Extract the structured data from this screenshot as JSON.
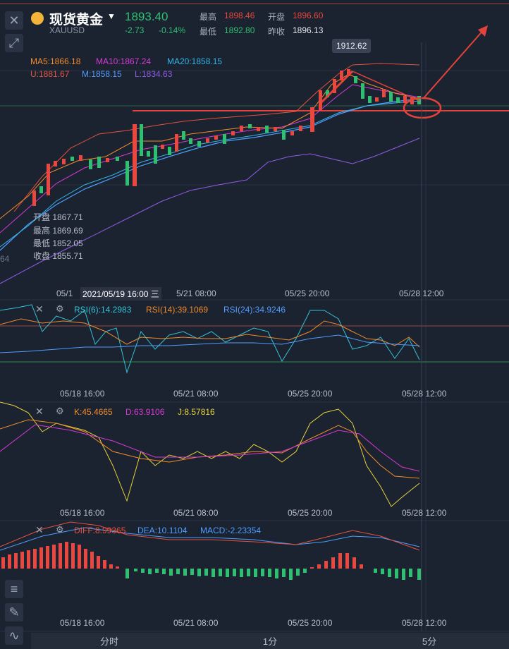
{
  "header": {
    "title": "现货黄金",
    "symbol": "XAUUSD",
    "price": "1893.40",
    "change": "-2.73",
    "change_pct": "-0.14%",
    "high_label": "最高",
    "high": "1898.46",
    "open_label": "开盘",
    "open": "1896.60",
    "low_label": "最低",
    "low": "1892.80",
    "prev_label": "昨收",
    "prev": "1896.13"
  },
  "main_chart": {
    "ma5": "MA5:1866.18",
    "ma10": "MA10:1867.24",
    "ma20": "MA20:1858.15",
    "boll_u": "U:1881.67",
    "boll_m": "M:1858.15",
    "boll_l": "L:1834.63",
    "tooltip_high": "1912.62",
    "cursor_time": "2021/05/19 16:00 三",
    "ohlc": {
      "open": "开盘 1867.71",
      "high": "最高 1869.69",
      "low": "最低 1852.05",
      "close": "收盘 1855.71"
    },
    "side_label": "64",
    "time_labels": [
      "05/1",
      "5/21 08:00",
      "05/25 20:00",
      "05/28 12:00"
    ]
  },
  "rsi": {
    "rsi6": "RSI(6):14.2983",
    "rsi14": "RSI(14):39.1069",
    "rsi24": "RSI(24):34.9246",
    "time_labels": [
      "05/18 16:00",
      "05/21 08:00",
      "05/25 20:00",
      "05/28 12:00"
    ]
  },
  "kdj": {
    "k": "K:45.4665",
    "d": "D:63.9106",
    "j": "J:8.57816",
    "time_labels": [
      "05/18 16:00",
      "05/21 08:00",
      "05/25 20:00",
      "05/28 12:00"
    ]
  },
  "macd": {
    "diff": "DIFF:8.99365",
    "dea": "DEA:10.1104",
    "macd": "MACD:-2.23354",
    "time_labels": [
      "05/18 16:00",
      "05/21 08:00",
      "05/25 20:00",
      "05/28 12:00"
    ]
  },
  "tabs": [
    "分时",
    "1分",
    "5分"
  ],
  "colors": {
    "up": "#e8483f",
    "down": "#2fbf71",
    "ma5": "#f08c2c",
    "ma10": "#d63ad6",
    "ma20": "#33b5e5",
    "boll_u": "#e5533d",
    "boll_m": "#4f9dff",
    "boll_l": "#8f5ce6"
  }
}
